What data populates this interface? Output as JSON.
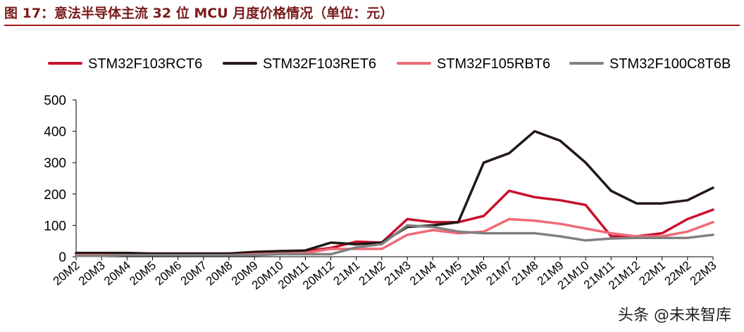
{
  "caption": "图 17：意法半导体主流 32 位 MCU 月度价格情况（单位：元）",
  "watermark": "头条 @未来智库",
  "chart_data": {
    "type": "line",
    "ylim": [
      0,
      500
    ],
    "yticks": [
      0,
      100,
      200,
      300,
      400,
      500
    ],
    "grid": false,
    "legend": "top",
    "categories": [
      "20M2",
      "20M3",
      "20M4",
      "20M5",
      "20M6",
      "20M7",
      "20M8",
      "20M9",
      "20M10",
      "20M11",
      "20M12",
      "21M1",
      "21M2",
      "21M3",
      "21M4",
      "21M5",
      "21M6",
      "21M7",
      "21M8",
      "21M9",
      "21M10",
      "21M11",
      "21M12",
      "22M1",
      "22M2",
      "22M3"
    ],
    "series": [
      {
        "name": "STM32F103RCT6",
        "color": "#c8102e",
        "values": [
          10,
          10,
          10,
          10,
          10,
          10,
          10,
          15,
          18,
          18,
          28,
          48,
          45,
          120,
          110,
          110,
          130,
          210,
          190,
          180,
          165,
          65,
          65,
          75,
          120,
          150
        ]
      },
      {
        "name": "STM32F103RET6",
        "color": "#231815",
        "values": [
          12,
          12,
          12,
          10,
          10,
          10,
          10,
          15,
          18,
          20,
          45,
          40,
          45,
          95,
          100,
          110,
          300,
          330,
          400,
          370,
          300,
          210,
          170,
          170,
          180,
          220
        ]
      },
      {
        "name": "STM32F105RBT6",
        "color": "#f06a78",
        "values": [
          5,
          5,
          5,
          5,
          5,
          5,
          5,
          8,
          10,
          12,
          25,
          25,
          25,
          70,
          85,
          75,
          80,
          120,
          115,
          105,
          90,
          75,
          65,
          65,
          80,
          110
        ]
      },
      {
        "name": "STM32F100C8T6B",
        "color": "#808080",
        "values": [
          3,
          3,
          5,
          5,
          5,
          5,
          5,
          5,
          8,
          8,
          8,
          30,
          40,
          100,
          95,
          80,
          75,
          75,
          75,
          65,
          52,
          58,
          60,
          60,
          60,
          70
        ]
      }
    ]
  }
}
